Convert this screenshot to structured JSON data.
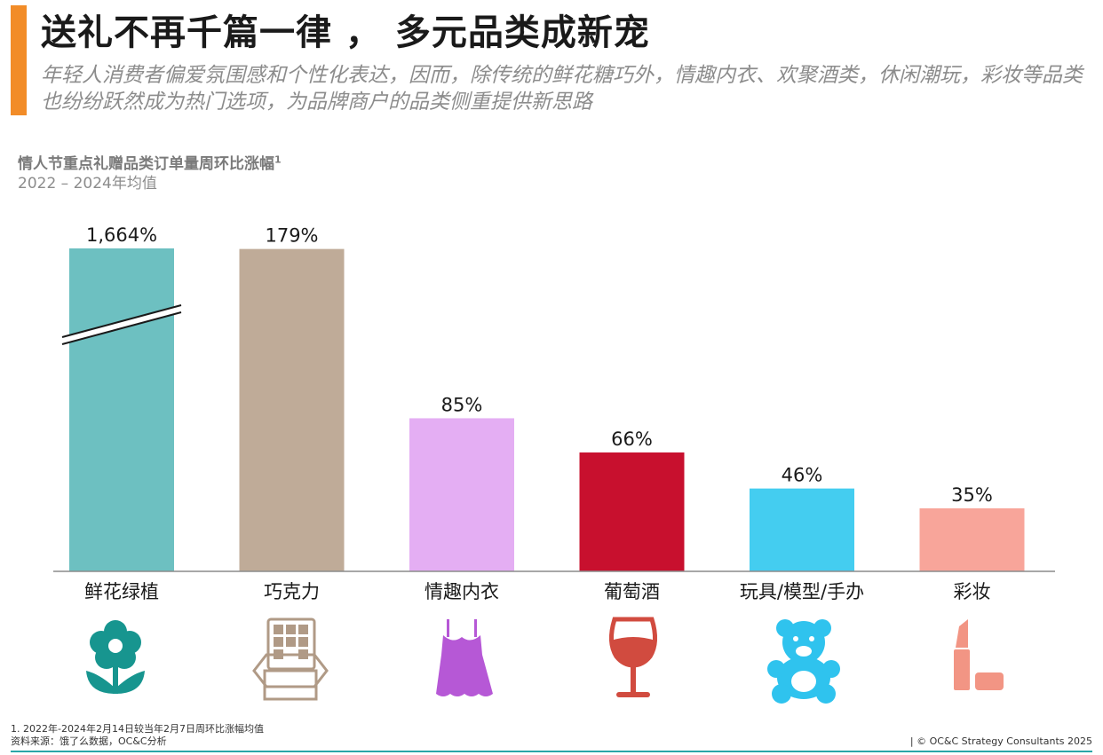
{
  "header": {
    "title": "送礼不再千篇一律 ， 多元品类成新宠",
    "subtitle": "年轻人消费者偏爱氛围感和个性化表达，因而，除传统的鲜花糖巧外，情趣内衣、欢聚酒类，休闲潮玩，彩妆等品类也纷纷跃然成为热门选项，为品牌商户的品类侧重提供新思路"
  },
  "chart_data": {
    "type": "bar",
    "title": "情人节重点礼赠品类订单量周环比涨幅",
    "title_footnote_marker": "1",
    "subtitle": "2022 – 2024年均值",
    "categories": [
      "鲜花绿植",
      "巧克力",
      "情趣内衣",
      "葡萄酒",
      "玩具/模型/手办",
      "彩妆"
    ],
    "values": [
      1664,
      179,
      85,
      66,
      46,
      35
    ],
    "value_labels": [
      "1,664%",
      "179%",
      "85%",
      "66%",
      "46%",
      "35%"
    ],
    "unit": "%",
    "colors": [
      "#6dc0c1",
      "#bfab98",
      "#e4aef3",
      "#c8102e",
      "#44cdf0",
      "#f8a59a"
    ],
    "axis_break_on": "鲜花绿植",
    "grid": false,
    "legend": "none"
  },
  "icons": [
    {
      "name": "flower-icon",
      "color": "#17958f"
    },
    {
      "name": "chocolate-icon",
      "color": "#b09a86"
    },
    {
      "name": "lingerie-icon",
      "color": "#b658d6"
    },
    {
      "name": "wine-glass-icon",
      "color": "#d14b3f"
    },
    {
      "name": "teddy-bear-icon",
      "color": "#2fc3ee"
    },
    {
      "name": "lipstick-icon",
      "color": "#f29584"
    }
  ],
  "footer": {
    "note": "1. 2022年-2024年2月14日较当年2月7日周环比涨幅均值",
    "source": "资料来源：饿了么数据，OC&C分析",
    "copyright": "| © OC&C Strategy Consultants 2025"
  }
}
